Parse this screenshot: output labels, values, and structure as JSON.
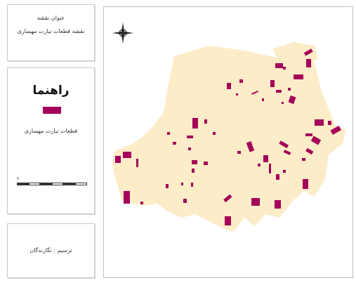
{
  "title_panel": {
    "line1": "عنوان نقشه",
    "line2": "نقشه قطعات تیارت مهساری"
  },
  "legend_panel": {
    "heading": "راهنما",
    "item_label": "قطعات تیارت مهساری",
    "swatch_color": "#a5005a",
    "scale_labels": [
      "0",
      "",
      "",
      "",
      ""
    ]
  },
  "credit_panel": {
    "text": "ترسیم : نگارندگان"
  },
  "map": {
    "base_color": "#fdecc8",
    "parcel_color": "#a5005a",
    "north_arrow": "north-arrow-icon"
  }
}
